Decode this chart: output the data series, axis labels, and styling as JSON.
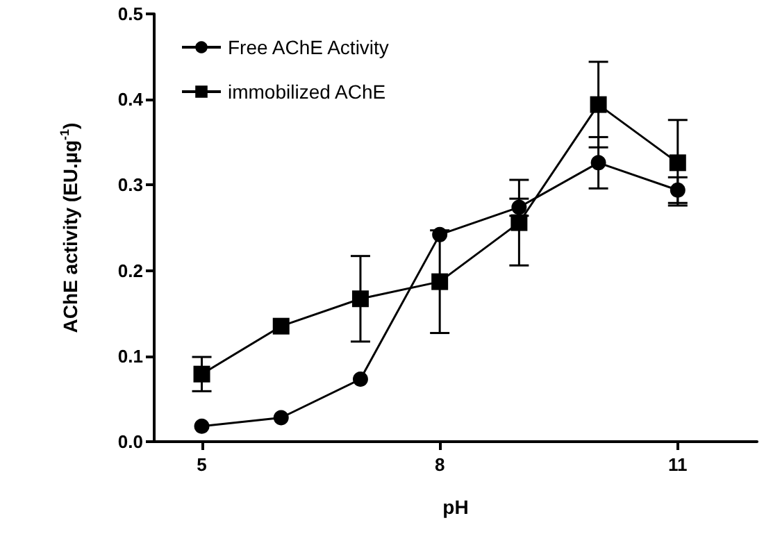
{
  "chart_data": {
    "type": "line",
    "xlabel": "pH",
    "ylabel": "AChE activity (EU.µg$^{-1}$)",
    "x": [
      5,
      6,
      7,
      8,
      9,
      10,
      11
    ],
    "xlim": [
      4.4,
      12
    ],
    "xticks": [
      5,
      8,
      11
    ],
    "ylim": [
      0,
      0.5
    ],
    "yticks": [
      {
        "value": 0,
        "label": "0.0"
      },
      0.1,
      0.2,
      0.3,
      0.4,
      0.5
    ],
    "grid": false,
    "legend": "top left",
    "series": [
      {
        "name": "Free AChE Activity",
        "color": "#000000",
        "marker": "circle",
        "values": [
          0.018,
          0.028,
          0.073,
          0.242,
          0.274,
          0.326,
          0.294
        ],
        "errors": [
          null,
          null,
          null,
          null,
          0.01,
          0.03,
          0.015
        ]
      },
      {
        "name": "immobilized AChE",
        "color": "#000000",
        "marker": "square",
        "values": [
          0.079,
          0.135,
          0.167,
          0.187,
          0.256,
          0.394,
          0.326
        ],
        "errors": [
          0.02,
          null,
          0.05,
          0.06,
          0.05,
          0.05,
          0.05
        ]
      }
    ]
  }
}
